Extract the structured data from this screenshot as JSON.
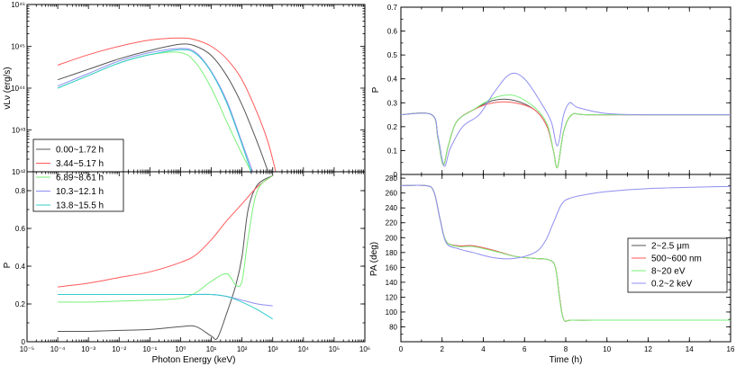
{
  "chart_data": [
    {
      "id": "left-top",
      "type": "line",
      "xlabel": "",
      "ylabel": "νLν (erg/s)",
      "x_scale": "log",
      "y_scale": "log",
      "xlim": [
        -5,
        6
      ],
      "ylim": [
        42,
        46
      ],
      "yticks": [
        {
          "v": 43,
          "label": "10⁴³"
        },
        {
          "v": 44,
          "label": "10⁴⁴"
        },
        {
          "v": 45,
          "label": "10⁴⁵"
        },
        {
          "v": 46,
          "label": "10⁴⁶"
        },
        {
          "v": 42,
          "label": "10⁴²"
        }
      ],
      "legend": {
        "position": "bottom-left",
        "labels": [
          "0.00~1.72 h",
          "3.44~5.17 h",
          "6.89~8.61 h",
          "10.3~12.1 h",
          "13.8~15.5 h"
        ]
      },
      "series": [
        {
          "name": "0.00~1.72 h",
          "color": "#555555",
          "x": [
            -4,
            -3,
            -2,
            -1,
            0,
            0.5,
            1,
            1.5,
            2,
            2.5,
            2.85
          ],
          "y": [
            44.2,
            44.45,
            44.7,
            44.9,
            45.05,
            45.0,
            44.78,
            44.3,
            43.6,
            42.7,
            42.0
          ]
        },
        {
          "name": "3.44~5.17 h",
          "color": "#ff5a5a",
          "x": [
            -4,
            -3,
            -2,
            -1,
            0,
            0.5,
            1,
            1.5,
            2,
            2.5,
            2.85,
            3.1
          ],
          "y": [
            44.55,
            44.8,
            45.0,
            45.15,
            45.2,
            45.15,
            45.0,
            44.7,
            44.2,
            43.4,
            42.7,
            42.0
          ]
        },
        {
          "name": "6.89~8.61 h",
          "color": "#7af07a",
          "x": [
            -4,
            -3,
            -2,
            -1,
            0,
            0.5,
            1,
            1.5,
            1.95,
            2.3
          ],
          "y": [
            44.0,
            44.3,
            44.6,
            44.8,
            44.85,
            44.6,
            44.0,
            43.2,
            42.5,
            42.0
          ]
        },
        {
          "name": "10.3~12.1 h",
          "color": "#8f8ff0",
          "x": [
            -4,
            -3,
            -2,
            -1,
            0,
            0.5,
            1,
            1.5,
            2.0,
            2.35
          ],
          "y": [
            44.05,
            44.35,
            44.65,
            44.85,
            44.95,
            44.85,
            44.4,
            43.7,
            42.7,
            42.0
          ]
        },
        {
          "name": "13.8~15.5 h",
          "color": "#33cccc",
          "x": [
            -4,
            -3,
            -2,
            -1,
            0,
            0.5,
            1,
            1.5,
            2.0,
            2.3
          ],
          "y": [
            44.0,
            44.3,
            44.6,
            44.8,
            44.92,
            44.82,
            44.38,
            43.65,
            42.65,
            42.0
          ]
        }
      ]
    },
    {
      "id": "left-bottom",
      "type": "line",
      "xlabel": "Photon Energy (keV)",
      "ylabel": "P",
      "x_scale": "log",
      "xlim": [
        -5,
        6
      ],
      "ylim": [
        0,
        0.9
      ],
      "xticks": [
        {
          "v": -5,
          "label": "10⁻⁵"
        },
        {
          "v": -4,
          "label": "10⁻⁴"
        },
        {
          "v": -3,
          "label": "10⁻³"
        },
        {
          "v": -2,
          "label": "10⁻²"
        },
        {
          "v": -1,
          "label": "10⁻¹"
        },
        {
          "v": 0,
          "label": "10⁰"
        },
        {
          "v": 1,
          "label": "10¹"
        },
        {
          "v": 2,
          "label": "10²"
        },
        {
          "v": 3,
          "label": "10³"
        },
        {
          "v": 4,
          "label": "10⁴"
        },
        {
          "v": 5,
          "label": "10⁵"
        },
        {
          "v": 6,
          "label": "10⁶"
        }
      ],
      "yticks": [
        {
          "v": 0,
          "label": "0"
        },
        {
          "v": 0.2,
          "label": "0.2"
        },
        {
          "v": 0.4,
          "label": "0.4"
        },
        {
          "v": 0.6,
          "label": "0.6"
        },
        {
          "v": 0.8,
          "label": "0.8"
        }
      ],
      "series": [
        {
          "name": "0.00~1.72 h",
          "color": "#555555",
          "x": [
            -4,
            -3,
            -2,
            -1,
            0,
            0.5,
            1,
            1.2,
            1.5,
            1.8,
            2.0,
            2.2,
            2.5,
            3.0
          ],
          "y": [
            0.055,
            0.055,
            0.06,
            0.065,
            0.08,
            0.08,
            0.03,
            0.02,
            0.15,
            0.3,
            0.45,
            0.7,
            0.83,
            0.88
          ]
        },
        {
          "name": "3.44~5.17 h",
          "color": "#ff5a5a",
          "x": [
            -4,
            -3,
            -2,
            -1,
            0,
            0.5,
            1,
            1.5,
            2.0,
            2.5,
            3.0
          ],
          "y": [
            0.29,
            0.31,
            0.34,
            0.37,
            0.42,
            0.46,
            0.54,
            0.64,
            0.73,
            0.82,
            0.88
          ]
        },
        {
          "name": "6.89~8.61 h",
          "color": "#7af07a",
          "x": [
            -4,
            -3,
            -2,
            -1,
            0,
            0.5,
            1,
            1.5,
            1.8,
            2.0,
            2.2,
            2.5,
            3.0
          ],
          "y": [
            0.21,
            0.21,
            0.215,
            0.22,
            0.23,
            0.26,
            0.32,
            0.36,
            0.3,
            0.32,
            0.55,
            0.8,
            0.88
          ]
        },
        {
          "name": "10.3~12.1 h",
          "color": "#8f8ff0",
          "x": [
            -4,
            -3,
            -2,
            -1,
            0,
            0.5,
            1,
            1.5,
            2.0,
            2.5,
            3.0
          ],
          "y": [
            0.25,
            0.25,
            0.25,
            0.25,
            0.25,
            0.25,
            0.25,
            0.24,
            0.22,
            0.2,
            0.19
          ]
        },
        {
          "name": "13.8~15.5 h",
          "color": "#33cccc",
          "x": [
            -4,
            -3,
            -2,
            -1,
            0,
            0.5,
            1,
            1.5,
            2.0,
            2.5,
            3.0
          ],
          "y": [
            0.25,
            0.25,
            0.25,
            0.25,
            0.25,
            0.25,
            0.25,
            0.24,
            0.21,
            0.17,
            0.12
          ]
        }
      ]
    },
    {
      "id": "right-top",
      "type": "line",
      "xlabel": "",
      "ylabel": "P",
      "xlim": [
        0,
        16
      ],
      "ylim": [
        0,
        0.7
      ],
      "yticks": [
        {
          "v": 0,
          "label": "0"
        },
        {
          "v": 0.1,
          "label": "0.1"
        },
        {
          "v": 0.2,
          "label": "0.2"
        },
        {
          "v": 0.3,
          "label": "0.3"
        },
        {
          "v": 0.4,
          "label": "0.4"
        },
        {
          "v": 0.5,
          "label": "0.5"
        },
        {
          "v": 0.6,
          "label": "0.6"
        },
        {
          "v": 0.7,
          "label": "0.7"
        }
      ],
      "series": [
        {
          "name": "2~2.5 μm",
          "color": "#555555",
          "x": [
            0,
            1.5,
            1.8,
            2.05,
            2.3,
            2.7,
            3.5,
            4.5,
            5.5,
            6.5,
            7.1,
            7.4,
            7.6,
            7.9,
            8.3,
            9,
            12,
            16
          ],
          "y": [
            0.25,
            0.25,
            0.15,
            0.04,
            0.12,
            0.22,
            0.27,
            0.31,
            0.31,
            0.27,
            0.2,
            0.1,
            0.03,
            0.18,
            0.25,
            0.25,
            0.25,
            0.25
          ]
        },
        {
          "name": "500~600 nm",
          "color": "#ff5a5a",
          "x": [
            0,
            1.5,
            1.8,
            2.05,
            2.3,
            2.7,
            3.5,
            4.5,
            5.5,
            6.5,
            7.1,
            7.4,
            7.6,
            7.9,
            8.3,
            9,
            12,
            16
          ],
          "y": [
            0.25,
            0.25,
            0.15,
            0.04,
            0.12,
            0.22,
            0.27,
            0.3,
            0.3,
            0.27,
            0.2,
            0.1,
            0.03,
            0.18,
            0.25,
            0.25,
            0.25,
            0.25
          ]
        },
        {
          "name": "8~20 eV",
          "color": "#7af07a",
          "x": [
            0,
            1.5,
            1.8,
            2.05,
            2.3,
            2.7,
            3.5,
            4.5,
            5.5,
            6.5,
            7.1,
            7.4,
            7.6,
            7.9,
            8.3,
            9,
            12,
            16
          ],
          "y": [
            0.25,
            0.25,
            0.15,
            0.04,
            0.12,
            0.22,
            0.27,
            0.32,
            0.33,
            0.28,
            0.21,
            0.1,
            0.03,
            0.18,
            0.25,
            0.25,
            0.25,
            0.25
          ]
        },
        {
          "name": "0.2~2 keV",
          "color": "#8f8ff0",
          "x": [
            0,
            1.5,
            1.8,
            2.1,
            2.4,
            3.0,
            3.8,
            4.5,
            5.3,
            6.0,
            6.8,
            7.3,
            7.6,
            7.9,
            8.2,
            8.6,
            10,
            12,
            16
          ],
          "y": [
            0.25,
            0.25,
            0.16,
            0.035,
            0.11,
            0.2,
            0.25,
            0.34,
            0.42,
            0.4,
            0.3,
            0.22,
            0.12,
            0.25,
            0.3,
            0.28,
            0.255,
            0.25,
            0.25
          ]
        }
      ]
    },
    {
      "id": "right-bottom",
      "type": "line",
      "xlabel": "Time (h)",
      "ylabel": "PA (deg)",
      "xlim": [
        0,
        16
      ],
      "ylim": [
        60,
        285
      ],
      "xticks": [
        {
          "v": 0,
          "label": "0"
        },
        {
          "v": 2,
          "label": "2"
        },
        {
          "v": 4,
          "label": "4"
        },
        {
          "v": 6,
          "label": "6"
        },
        {
          "v": 8,
          "label": "8"
        },
        {
          "v": 10,
          "label": "10"
        },
        {
          "v": 12,
          "label": "12"
        },
        {
          "v": 14,
          "label": "14"
        },
        {
          "v": 16,
          "label": "16"
        }
      ],
      "yticks": [
        {
          "v": 80,
          "label": "80"
        },
        {
          "v": 100,
          "label": "100"
        },
        {
          "v": 120,
          "label": "120"
        },
        {
          "v": 140,
          "label": "140"
        },
        {
          "v": 160,
          "label": "160"
        },
        {
          "v": 180,
          "label": "180"
        },
        {
          "v": 200,
          "label": "200"
        },
        {
          "v": 220,
          "label": "220"
        },
        {
          "v": 240,
          "label": "240"
        },
        {
          "v": 260,
          "label": "260"
        },
        {
          "v": 280,
          "label": "280"
        }
      ],
      "legend": {
        "position": "bottom-right",
        "labels": [
          "2~2.5 μm",
          "500~600 nm",
          "8~20 eV",
          "0.2~2 keV"
        ]
      },
      "series": [
        {
          "name": "2~2.5 μm",
          "color": "#555555",
          "x": [
            0,
            1.2,
            1.6,
            1.9,
            2.2,
            2.8,
            3.5,
            4.5,
            5.5,
            6.5,
            7.2,
            7.5,
            7.7,
            7.9,
            8.3,
            10,
            12,
            16
          ],
          "y": [
            270,
            270,
            262,
            225,
            195,
            189,
            189,
            183,
            175,
            172,
            170,
            160,
            120,
            90,
            89,
            89,
            89,
            89
          ]
        },
        {
          "name": "500~600 nm",
          "color": "#ff5a5a",
          "x": [
            0,
            1.2,
            1.6,
            1.9,
            2.2,
            2.8,
            3.5,
            4.5,
            5.5,
            6.5,
            7.2,
            7.5,
            7.7,
            7.9,
            8.3,
            10,
            12,
            16
          ],
          "y": [
            270,
            270,
            262,
            225,
            195,
            189,
            189,
            183,
            175,
            172,
            170,
            160,
            120,
            90,
            89,
            89,
            89,
            89
          ]
        },
        {
          "name": "8~20 eV",
          "color": "#7af07a",
          "x": [
            0,
            1.2,
            1.6,
            1.9,
            2.2,
            2.8,
            3.5,
            4.5,
            5.5,
            6.5,
            7.2,
            7.5,
            7.7,
            7.9,
            8.3,
            10,
            12,
            16
          ],
          "y": [
            270,
            270,
            262,
            225,
            195,
            188,
            188,
            182,
            175,
            172,
            170,
            160,
            118,
            90,
            89,
            89,
            89,
            89
          ]
        },
        {
          "name": "0.2~2 keV",
          "color": "#8f8ff0",
          "x": [
            0,
            1.2,
            1.6,
            1.9,
            2.2,
            2.8,
            3.5,
            4.5,
            5.5,
            6.5,
            7.0,
            7.4,
            7.8,
            8.2,
            9,
            10,
            12,
            16
          ],
          "y": [
            270,
            270,
            262,
            225,
            193,
            185,
            180,
            173,
            172,
            180,
            195,
            220,
            245,
            253,
            258,
            262,
            266,
            269
          ]
        }
      ]
    }
  ]
}
